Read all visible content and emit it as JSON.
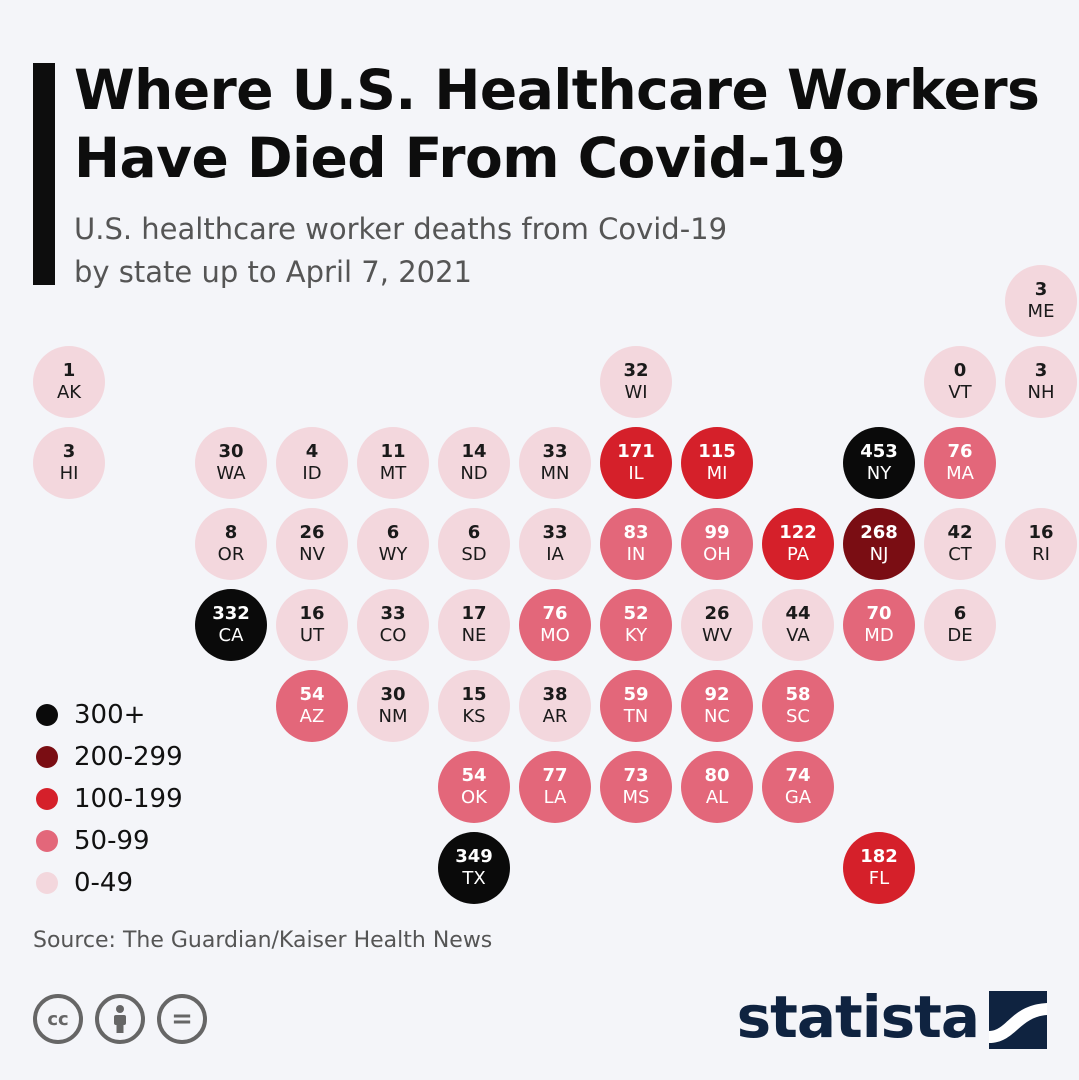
{
  "header": {
    "title": "Where U.S. Healthcare Workers Have Died From Covid-19",
    "subtitle_line1": "U.S. healthcare worker deaths from Covid-19",
    "subtitle_line2": "by state up to April 7, 2021"
  },
  "colors": {
    "c300": "#0a0a0a",
    "c200": "#7a0d13",
    "c100": "#d5202a",
    "c50": "#e3677a",
    "c0": "#f3d7dd",
    "accent": "#0d0d0d",
    "brand": "#0f2340"
  },
  "chart_data": {
    "type": "tile-grid-map",
    "title": "Where U.S. Healthcare Workers Have Died From Covid-19",
    "states": [
      {
        "abbr": "ME",
        "value": 3,
        "col": 12,
        "row": 0
      },
      {
        "abbr": "AK",
        "value": 1,
        "col": 0,
        "row": 1
      },
      {
        "abbr": "WI",
        "value": 32,
        "col": 7,
        "row": 1
      },
      {
        "abbr": "VT",
        "value": 0,
        "col": 11,
        "row": 1
      },
      {
        "abbr": "NH",
        "value": 3,
        "col": 12,
        "row": 1
      },
      {
        "abbr": "HI",
        "value": 3,
        "col": 0,
        "row": 2
      },
      {
        "abbr": "WA",
        "value": 30,
        "col": 2,
        "row": 2
      },
      {
        "abbr": "ID",
        "value": 4,
        "col": 3,
        "row": 2
      },
      {
        "abbr": "MT",
        "value": 11,
        "col": 4,
        "row": 2
      },
      {
        "abbr": "ND",
        "value": 14,
        "col": 5,
        "row": 2
      },
      {
        "abbr": "MN",
        "value": 33,
        "col": 6,
        "row": 2
      },
      {
        "abbr": "IL",
        "value": 171,
        "col": 7,
        "row": 2
      },
      {
        "abbr": "MI",
        "value": 115,
        "col": 8,
        "row": 2
      },
      {
        "abbr": "NY",
        "value": 453,
        "col": 10,
        "row": 2
      },
      {
        "abbr": "MA",
        "value": 76,
        "col": 11,
        "row": 2
      },
      {
        "abbr": "OR",
        "value": 8,
        "col": 2,
        "row": 3
      },
      {
        "abbr": "NV",
        "value": 26,
        "col": 3,
        "row": 3
      },
      {
        "abbr": "WY",
        "value": 6,
        "col": 4,
        "row": 3
      },
      {
        "abbr": "SD",
        "value": 6,
        "col": 5,
        "row": 3
      },
      {
        "abbr": "IA",
        "value": 33,
        "col": 6,
        "row": 3
      },
      {
        "abbr": "IN",
        "value": 83,
        "col": 7,
        "row": 3
      },
      {
        "abbr": "OH",
        "value": 99,
        "col": 8,
        "row": 3
      },
      {
        "abbr": "PA",
        "value": 122,
        "col": 9,
        "row": 3
      },
      {
        "abbr": "NJ",
        "value": 268,
        "col": 10,
        "row": 3
      },
      {
        "abbr": "CT",
        "value": 42,
        "col": 11,
        "row": 3
      },
      {
        "abbr": "RI",
        "value": 16,
        "col": 12,
        "row": 3
      },
      {
        "abbr": "CA",
        "value": 332,
        "col": 2,
        "row": 4
      },
      {
        "abbr": "UT",
        "value": 16,
        "col": 3,
        "row": 4
      },
      {
        "abbr": "CO",
        "value": 33,
        "col": 4,
        "row": 4
      },
      {
        "abbr": "NE",
        "value": 17,
        "col": 5,
        "row": 4
      },
      {
        "abbr": "MO",
        "value": 76,
        "col": 6,
        "row": 4
      },
      {
        "abbr": "KY",
        "value": 52,
        "col": 7,
        "row": 4
      },
      {
        "abbr": "WV",
        "value": 26,
        "col": 8,
        "row": 4
      },
      {
        "abbr": "VA",
        "value": 44,
        "col": 9,
        "row": 4
      },
      {
        "abbr": "MD",
        "value": 70,
        "col": 10,
        "row": 4
      },
      {
        "abbr": "DE",
        "value": 6,
        "col": 11,
        "row": 4
      },
      {
        "abbr": "AZ",
        "value": 54,
        "col": 3,
        "row": 5
      },
      {
        "abbr": "NM",
        "value": 30,
        "col": 4,
        "row": 5
      },
      {
        "abbr": "KS",
        "value": 15,
        "col": 5,
        "row": 5
      },
      {
        "abbr": "AR",
        "value": 38,
        "col": 6,
        "row": 5
      },
      {
        "abbr": "TN",
        "value": 59,
        "col": 7,
        "row": 5
      },
      {
        "abbr": "NC",
        "value": 92,
        "col": 8,
        "row": 5
      },
      {
        "abbr": "SC",
        "value": 58,
        "col": 9,
        "row": 5
      },
      {
        "abbr": "OK",
        "value": 54,
        "col": 5,
        "row": 6
      },
      {
        "abbr": "LA",
        "value": 77,
        "col": 6,
        "row": 6
      },
      {
        "abbr": "MS",
        "value": 73,
        "col": 7,
        "row": 6
      },
      {
        "abbr": "AL",
        "value": 80,
        "col": 8,
        "row": 6
      },
      {
        "abbr": "GA",
        "value": 74,
        "col": 9,
        "row": 6
      },
      {
        "abbr": "TX",
        "value": 349,
        "col": 5,
        "row": 7
      },
      {
        "abbr": "FL",
        "value": 182,
        "col": 10,
        "row": 7
      }
    ],
    "legend": [
      {
        "label": "300+",
        "min": 300,
        "color": "#0a0a0a"
      },
      {
        "label": "200-299",
        "min": 200,
        "color": "#7a0d13"
      },
      {
        "label": "100-199",
        "min": 100,
        "color": "#d5202a"
      },
      {
        "label": "50-99",
        "min": 50,
        "color": "#e3677a"
      },
      {
        "label": "0-49",
        "min": 0,
        "color": "#f3d7dd"
      }
    ]
  },
  "footer": {
    "source": "Source: The Guardian/Kaiser Health News",
    "cc_icons": [
      "cc-icon",
      "by-icon",
      "nd-icon"
    ],
    "cc_label": "cc",
    "nd_label": "=",
    "brand": "statista"
  }
}
